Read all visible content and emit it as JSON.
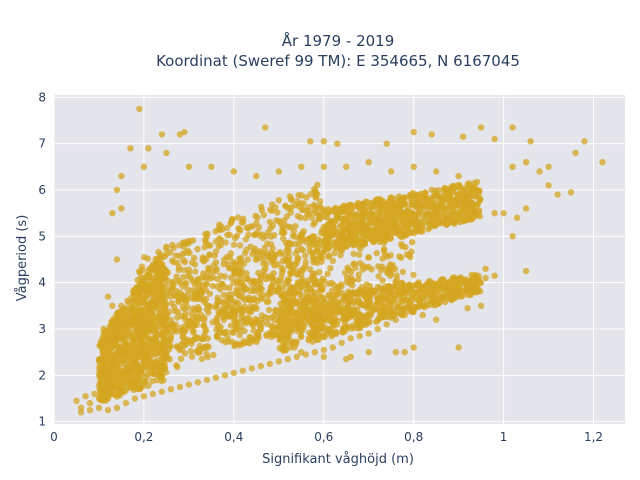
{
  "chart_data": {
    "type": "scatter",
    "title_line1": "År 1979 - 2019",
    "title_line2": "Koordinat (Sweref 99 TM): E 354665, N 6167045",
    "xlabel": "Signifikant våghöjd (m)",
    "ylabel": "Vågperiod (s)",
    "xlim": [
      0,
      1.27
    ],
    "ylim": [
      0.95,
      8.05
    ],
    "x_ticks": [
      {
        "value": 0,
        "label": "0"
      },
      {
        "value": 0.2,
        "label": "0,2"
      },
      {
        "value": 0.4,
        "label": "0,4"
      },
      {
        "value": 0.6,
        "label": "0,6"
      },
      {
        "value": 0.8,
        "label": "0,8"
      },
      {
        "value": 1.0,
        "label": "1"
      },
      {
        "value": 1.2,
        "label": "1,2"
      }
    ],
    "y_ticks": [
      {
        "value": 1,
        "label": "1"
      },
      {
        "value": 2,
        "label": "2"
      },
      {
        "value": 3,
        "label": "3"
      },
      {
        "value": 4,
        "label": "4"
      },
      {
        "value": 5,
        "label": "5"
      },
      {
        "value": 6,
        "label": "6"
      },
      {
        "value": 7,
        "label": "7"
      },
      {
        "value": 8,
        "label": "8"
      }
    ],
    "marker_color": "#d4a520",
    "marker_opacity": 0.75,
    "grid": true,
    "points": [
      [
        0.05,
        1.45
      ],
      [
        0.06,
        1.3
      ],
      [
        0.07,
        1.55
      ],
      [
        0.08,
        1.4
      ],
      [
        0.09,
        1.6
      ],
      [
        0.1,
        1.5
      ],
      [
        0.11,
        1.7
      ],
      [
        0.12,
        1.5
      ],
      [
        0.13,
        1.6
      ],
      [
        0.14,
        1.75
      ],
      [
        0.06,
        1.2
      ],
      [
        0.08,
        1.25
      ],
      [
        0.1,
        1.3
      ],
      [
        0.12,
        1.25
      ],
      [
        0.14,
        1.3
      ],
      [
        0.16,
        1.4
      ],
      [
        0.18,
        1.5
      ],
      [
        0.2,
        1.55
      ],
      [
        0.22,
        1.6
      ],
      [
        0.24,
        1.65
      ],
      [
        0.26,
        1.7
      ],
      [
        0.28,
        1.75
      ],
      [
        0.3,
        1.8
      ],
      [
        0.32,
        1.85
      ],
      [
        0.34,
        1.9
      ],
      [
        0.36,
        1.95
      ],
      [
        0.38,
        2.0
      ],
      [
        0.4,
        2.05
      ],
      [
        0.42,
        2.1
      ],
      [
        0.44,
        2.15
      ],
      [
        0.46,
        2.2
      ],
      [
        0.48,
        2.25
      ],
      [
        0.5,
        2.3
      ],
      [
        0.52,
        2.35
      ],
      [
        0.54,
        2.4
      ],
      [
        0.56,
        2.45
      ],
      [
        0.58,
        2.5
      ],
      [
        0.6,
        2.55
      ],
      [
        0.62,
        2.6
      ],
      [
        0.64,
        2.7
      ],
      [
        0.66,
        2.8
      ],
      [
        0.68,
        2.85
      ],
      [
        0.7,
        2.9
      ],
      [
        0.72,
        3.0
      ],
      [
        0.74,
        3.1
      ],
      [
        0.76,
        3.2
      ],
      [
        0.78,
        3.3
      ],
      [
        0.8,
        3.4
      ],
      [
        0.82,
        3.5
      ],
      [
        0.84,
        3.6
      ],
      [
        0.86,
        3.7
      ],
      [
        0.88,
        3.8
      ],
      [
        0.9,
        3.9
      ],
      [
        0.92,
        4.0
      ],
      [
        0.94,
        4.05
      ],
      [
        0.96,
        4.1
      ],
      [
        0.98,
        4.15
      ],
      [
        0.9,
        2.6
      ],
      [
        0.66,
        2.4
      ],
      [
        0.78,
        2.5
      ],
      [
        0.1,
        2.0
      ],
      [
        0.12,
        2.5
      ],
      [
        0.11,
        3.0
      ],
      [
        0.13,
        3.5
      ],
      [
        0.12,
        3.7
      ],
      [
        0.14,
        4.5
      ],
      [
        0.13,
        5.5
      ],
      [
        0.15,
        5.6
      ],
      [
        0.14,
        6.0
      ],
      [
        0.15,
        6.3
      ],
      [
        0.19,
        7.75
      ],
      [
        0.24,
        7.2
      ],
      [
        0.28,
        7.2
      ],
      [
        0.29,
        7.25
      ],
      [
        0.21,
        6.9
      ],
      [
        0.17,
        6.9
      ],
      [
        0.47,
        7.35
      ],
      [
        0.57,
        7.05
      ],
      [
        0.6,
        7.05
      ],
      [
        0.63,
        7.0
      ],
      [
        0.74,
        7.0
      ],
      [
        0.8,
        7.25
      ],
      [
        0.84,
        7.2
      ],
      [
        0.91,
        7.15
      ],
      [
        0.95,
        7.35
      ],
      [
        1.02,
        7.35
      ],
      [
        0.98,
        7.1
      ],
      [
        1.06,
        7.05
      ],
      [
        1.18,
        7.05
      ],
      [
        1.22,
        6.6
      ],
      [
        1.16,
        6.8
      ],
      [
        1.1,
        6.5
      ],
      [
        1.05,
        6.6
      ],
      [
        1.08,
        6.4
      ],
      [
        1.02,
        6.5
      ],
      [
        1.1,
        6.1
      ],
      [
        1.15,
        5.95
      ],
      [
        1.12,
        5.9
      ],
      [
        1.05,
        5.6
      ],
      [
        1.0,
        5.5
      ],
      [
        1.03,
        5.4
      ],
      [
        0.98,
        5.5
      ],
      [
        1.02,
        5.0
      ],
      [
        1.05,
        4.25
      ],
      [
        0.96,
        4.3
      ],
      [
        0.95,
        3.5
      ],
      [
        0.92,
        3.45
      ],
      [
        0.85,
        3.2
      ],
      [
        0.82,
        3.3
      ],
      [
        0.8,
        2.6
      ],
      [
        0.76,
        2.5
      ],
      [
        0.7,
        2.5
      ],
      [
        0.65,
        2.35
      ],
      [
        0.6,
        2.4
      ],
      [
        0.55,
        2.5
      ],
      [
        0.2,
        6.5
      ],
      [
        0.25,
        6.8
      ],
      [
        0.3,
        6.5
      ],
      [
        0.35,
        6.5
      ],
      [
        0.4,
        6.4
      ],
      [
        0.45,
        6.3
      ],
      [
        0.5,
        6.4
      ],
      [
        0.55,
        6.5
      ],
      [
        0.6,
        6.5
      ],
      [
        0.65,
        6.5
      ],
      [
        0.7,
        6.6
      ],
      [
        0.75,
        6.4
      ],
      [
        0.8,
        6.5
      ],
      [
        0.85,
        6.4
      ],
      [
        0.9,
        6.3
      ]
    ],
    "core_regions": [
      {
        "x0": 0.12,
        "x1": 0.8,
        "y_low": [
          1.7,
          3.8
        ],
        "y_high": [
          3.4,
          6.0
        ]
      },
      {
        "x0": 0.18,
        "x1": 0.6,
        "y_low": [
          2.2,
          3.0
        ],
        "y_high": [
          4.5,
          6.2
        ]
      },
      {
        "x0": 0.1,
        "x1": 0.25,
        "y_low": [
          1.4,
          1.9
        ],
        "y_high": [
          2.8,
          4.8
        ]
      },
      {
        "x0": 0.5,
        "x1": 0.95,
        "y_low": [
          2.5,
          3.8
        ],
        "y_high": [
          3.6,
          4.2
        ]
      },
      {
        "x0": 0.6,
        "x1": 0.95,
        "y_low": [
          4.6,
          5.4
        ],
        "y_high": [
          5.6,
          6.2
        ]
      }
    ]
  }
}
